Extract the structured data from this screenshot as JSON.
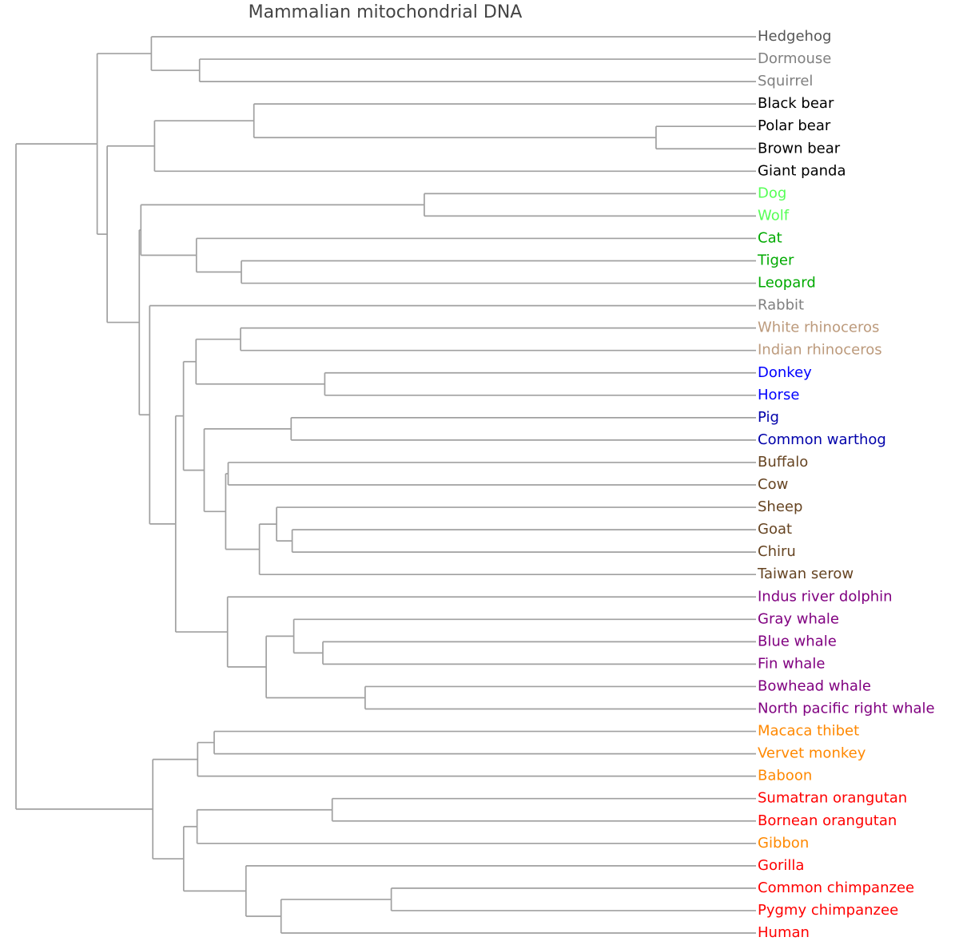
{
  "title": "Mammalian mitochondrial DNA",
  "branch_color": "#a0a0a0",
  "title_color": "#444444",
  "leaves": [
    {
      "name": "Hedgehog",
      "color": "#555555"
    },
    {
      "name": "Dormouse",
      "color": "#808080"
    },
    {
      "name": "Squirrel",
      "color": "#808080"
    },
    {
      "name": "Black bear",
      "color": "#000000"
    },
    {
      "name": "Polar bear",
      "color": "#000000"
    },
    {
      "name": "Brown bear",
      "color": "#000000"
    },
    {
      "name": "Giant panda",
      "color": "#000000"
    },
    {
      "name": "Dog",
      "color": "#55ff55"
    },
    {
      "name": "Wolf",
      "color": "#55ff55"
    },
    {
      "name": "Cat",
      "color": "#00aa00"
    },
    {
      "name": "Tiger",
      "color": "#00aa00"
    },
    {
      "name": "Leopard",
      "color": "#00aa00"
    },
    {
      "name": "Rabbit",
      "color": "#808080"
    },
    {
      "name": "White rhinoceros",
      "color": "#bc9a7c"
    },
    {
      "name": "Indian rhinoceros",
      "color": "#bc9a7c"
    },
    {
      "name": "Donkey",
      "color": "#0000ff"
    },
    {
      "name": "Horse",
      "color": "#0000ff"
    },
    {
      "name": "Pig",
      "color": "#0000aa"
    },
    {
      "name": "Common warthog",
      "color": "#0000aa"
    },
    {
      "name": "Buffalo",
      "color": "#664422"
    },
    {
      "name": "Cow",
      "color": "#664422"
    },
    {
      "name": "Sheep",
      "color": "#664422"
    },
    {
      "name": "Goat",
      "color": "#664422"
    },
    {
      "name": "Chiru",
      "color": "#664422"
    },
    {
      "name": "Taiwan serow",
      "color": "#664422"
    },
    {
      "name": "Indus river dolphin",
      "color": "#800080"
    },
    {
      "name": "Gray whale",
      "color": "#800080"
    },
    {
      "name": "Blue whale",
      "color": "#800080"
    },
    {
      "name": "Fin whale",
      "color": "#800080"
    },
    {
      "name": "Bowhead whale",
      "color": "#800080"
    },
    {
      "name": "North pacific right whale",
      "color": "#800080"
    },
    {
      "name": "Macaca thibet",
      "color": "#ff8800"
    },
    {
      "name": "Vervet monkey",
      "color": "#ff8800"
    },
    {
      "name": "Baboon",
      "color": "#ff8800"
    },
    {
      "name": "Sumatran orangutan",
      "color": "#ff0000"
    },
    {
      "name": "Bornean orangutan",
      "color": "#ff0000"
    },
    {
      "name": "Gibbon",
      "color": "#ff8800"
    },
    {
      "name": "Gorilla",
      "color": "#ff0000"
    },
    {
      "name": "Common chimpanzee",
      "color": "#ff0000"
    },
    {
      "name": "Pygmy chimpanzee",
      "color": "#ff0000"
    },
    {
      "name": "Human",
      "color": "#ff0000"
    }
  ],
  "tree": {
    "h": 0,
    "children": [
      {
        "h": 101.6,
        "children": [
          {
            "h": 169.4,
            "children": [
              {
                "h": 250.5,
                "children": [
                  {
                    "leaf": 0
                  }
                ]
              },
              {
                "h": 229.7,
                "children": [
                  {
                    "leaf": 1
                  },
                  {
                    "leaf": 2
                  }
                ]
              }
            ]
          },
          {
            "h": 114.1,
            "children": [
              {
                "h": 173.4,
                "children": [
                  {
                    "h": 297.7,
                    "children": [
                      {
                        "leaf": 3
                      },
                      {
                        "h": 800.9,
                        "children": [
                          {
                            "leaf": 4
                          },
                          {
                            "leaf": 5
                          }
                        ]
                      }
                    ]
                  },
                  {
                    "leaf": 6
                  }
                ]
              },
              {
                "h": 154.3,
                "children": [
                  {
                    "h": 156.3,
                    "children": [
                      {
                        "h": 510.9,
                        "children": [
                          {
                            "leaf": 7
                          },
                          {
                            "leaf": 8
                          }
                        ]
                      },
                      {
                        "h": 225.8,
                        "children": [
                          {
                            "leaf": 9
                          },
                          {
                            "h": 282.0,
                            "children": [
                              {
                                "leaf": 10
                              },
                              {
                                "leaf": 11
                              }
                            ]
                          }
                        ]
                      }
                    ]
                  },
                  {
                    "h": 167.3,
                    "children": [
                      {
                        "leaf": 12
                      },
                      {
                        "h": 199.8,
                        "children": [
                          {
                            "h": 209.6,
                            "children": [
                              {
                                "h": 225.3,
                                "children": [
                                  {
                                    "h": 281.0,
                                    "children": [
                                      {
                                        "leaf": 13
                                      },
                                      {
                                        "leaf": 14
                                      }
                                    ]
                                  },
                                  {
                                    "h": 386.4,
                                    "children": [
                                      {
                                        "leaf": 15
                                      },
                                      {
                                        "leaf": 16
                                      }
                                    ]
                                  }
                                ]
                              },
                              {
                                "h": 235.5,
                                "children": [
                                  {
                                    "h": 344.3,
                                    "children": [
                                      {
                                        "leaf": 17
                                      },
                                      {
                                        "leaf": 18
                                      }
                                    ]
                                  },
                                  {
                                    "h": 262.4,
                                    "children": [
                                      {
                                        "h": 265.5,
                                        "children": [
                                          {
                                            "leaf": 19
                                          },
                                          {
                                            "leaf": 20
                                          }
                                        ]
                                      },
                                      {
                                        "h": 304.6,
                                        "children": [
                                          {
                                            "h": 326.1,
                                            "children": [
                                              {
                                                "leaf": 21
                                              },
                                              {
                                                "h": 345.6,
                                                "children": [
                                                  {
                                                    "leaf": 22
                                                  },
                                                  {
                                                    "leaf": 23
                                                  }
                                                ]
                                              }
                                            ]
                                          },
                                          {
                                            "leaf": 24
                                          }
                                        ]
                                      }
                                    ]
                                  }
                                ]
                              }
                            ]
                          },
                          {
                            "h": 264.7,
                            "children": [
                              {
                                "leaf": 25
                              },
                              {
                                "h": 313.1,
                                "children": [
                                  {
                                    "h": 347.6,
                                    "children": [
                                      {
                                        "leaf": 26
                                      },
                                      {
                                        "h": 384.0,
                                        "children": [
                                          {
                                            "leaf": 27
                                          },
                                          {
                                            "leaf": 28
                                          }
                                        ]
                                      }
                                    ]
                                  },
                                  {
                                    "h": 436.9,
                                    "children": [
                                      {
                                        "leaf": 29
                                      },
                                      {
                                        "leaf": 30
                                      }
                                    ]
                                  }
                                ]
                              }
                            ]
                          }
                        ]
                      }
                    ]
                  }
                ]
              }
            ]
          }
        ]
      },
      {
        "h": 171.2,
        "children": [
          {
            "h": 227.3,
            "children": [
              {
                "h": 248.0,
                "children": [
                  {
                    "leaf": 31
                  },
                  {
                    "leaf": 32
                  }
                ]
              },
              {
                "leaf": 33
              }
            ]
          },
          {
            "h": 209.8,
            "children": [
              {
                "h": 226.6,
                "children": [
                  {
                    "h": 395.7,
                    "children": [
                      {
                        "leaf": 34
                      },
                      {
                        "leaf": 35
                      }
                    ]
                  },
                  {
                    "leaf": 36
                  }
                ]
              },
              {
                "h": 287.8,
                "children": [
                  {
                    "leaf": 37
                  },
                  {
                    "h": 331.7,
                    "children": [
                      {
                        "h": 469.6,
                        "children": [
                          {
                            "leaf": 38
                          },
                          {
                            "leaf": 39
                          }
                        ]
                      },
                      {
                        "leaf": 40
                      }
                    ]
                  }
                ]
              }
            ]
          }
        ]
      }
    ]
  }
}
